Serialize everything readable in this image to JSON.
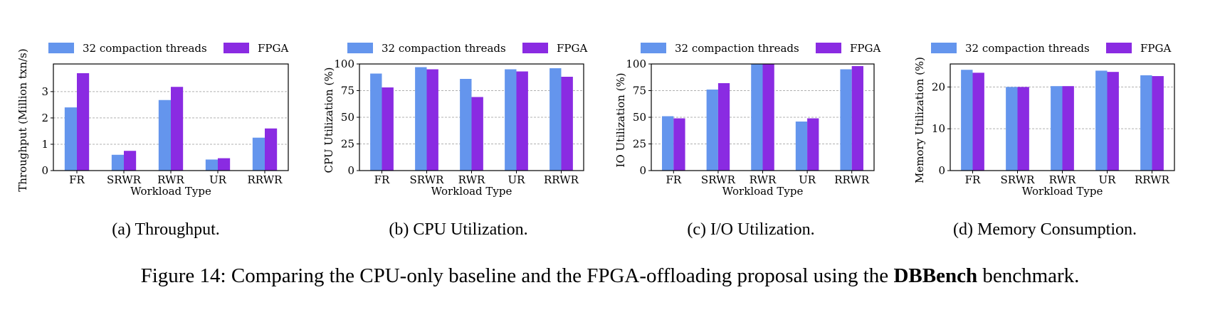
{
  "colors": {
    "cpu": "#6495ed",
    "fpga": "#8a2be2",
    "grid": "#b0b0b0"
  },
  "legend": {
    "cpu_label": "32 compaction threads",
    "fpga_label": "FPGA"
  },
  "chart_data": [
    {
      "type": "bar",
      "categories": [
        "FR",
        "SRWR",
        "RWR",
        "UR",
        "RRWR"
      ],
      "series": [
        {
          "name": "32 compaction threads",
          "values": [
            2.4,
            0.6,
            2.68,
            0.42,
            1.25
          ]
        },
        {
          "name": "FPGA",
          "values": [
            3.7,
            0.75,
            3.18,
            0.47,
            1.6
          ]
        }
      ],
      "xlabel": "Workload Type",
      "ylabel": "Throughput (Million txn/s)",
      "ylim": [
        0,
        4.05
      ],
      "yticks": [
        0,
        1,
        2,
        3
      ],
      "caption": "(a) Throughput."
    },
    {
      "type": "bar",
      "categories": [
        "FR",
        "SRWR",
        "RWR",
        "UR",
        "RRWR"
      ],
      "series": [
        {
          "name": "32 compaction threads",
          "values": [
            91,
            97,
            86,
            95,
            96
          ]
        },
        {
          "name": "FPGA",
          "values": [
            78,
            95,
            69,
            93,
            88
          ]
        }
      ],
      "xlabel": "Workload Type",
      "ylabel": "CPU Utilization (%)",
      "ylim": [
        0,
        100
      ],
      "yticks": [
        0,
        25,
        50,
        75,
        100
      ],
      "caption": "(b) CPU Utilization."
    },
    {
      "type": "bar",
      "categories": [
        "FR",
        "SRWR",
        "RWR",
        "UR",
        "RRWR"
      ],
      "series": [
        {
          "name": "32 compaction threads",
          "values": [
            51,
            76,
            100,
            46,
            95
          ]
        },
        {
          "name": "FPGA",
          "values": [
            49,
            82,
            100,
            49,
            98
          ]
        }
      ],
      "xlabel": "Workload Type",
      "ylabel": "IO Utilization (%)",
      "ylim": [
        0,
        100
      ],
      "yticks": [
        0,
        25,
        50,
        75,
        100
      ],
      "caption": "(c) I/O Utilization."
    },
    {
      "type": "bar",
      "categories": [
        "FR",
        "SRWR",
        "RWR",
        "UR",
        "RRWR"
      ],
      "series": [
        {
          "name": "32 compaction threads",
          "values": [
            24.1,
            20.0,
            20.2,
            23.9,
            22.8
          ]
        },
        {
          "name": "FPGA",
          "values": [
            23.4,
            20.0,
            20.2,
            23.6,
            22.6
          ]
        }
      ],
      "xlabel": "Workload Type",
      "ylabel": "Memory Utilization (%)",
      "ylim": [
        0,
        25.5
      ],
      "yticks": [
        0,
        10,
        20
      ],
      "caption": "(d) Memory Consumption."
    }
  ],
  "figure_caption": {
    "prefix": "Figure 14: Comparing the CPU-only baseline and the FPGA-offloading proposal using the ",
    "bold": "DBBench",
    "suffix": " benchmark."
  }
}
